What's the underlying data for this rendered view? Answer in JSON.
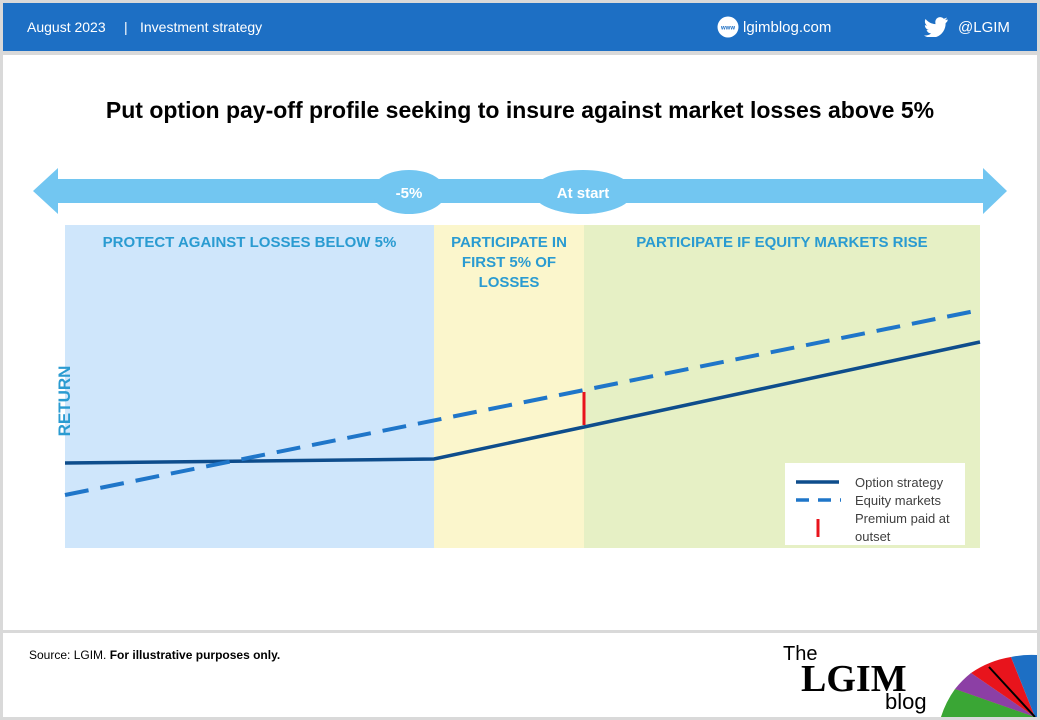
{
  "header": {
    "date": "August 2023",
    "separator": "|",
    "category": "Investment strategy",
    "site": "lgimblog.com",
    "site_icon_text": "www",
    "twitter_handle": "@LGIM",
    "icons": {
      "site": "globe-www-icon",
      "twitter": "twitter-bird-icon"
    }
  },
  "title": "Put option pay-off profile seeking to insure against market losses above 5%",
  "axis": {
    "markers": [
      "-5%",
      "At start"
    ],
    "y_label": "RETURN"
  },
  "zones": [
    {
      "label": "PROTECT AGAINST LOSSES BELOW 5%",
      "color": "#cfe6fb"
    },
    {
      "label": "PARTICIPATE IN FIRST 5% OF LOSSES",
      "label_lines": [
        "PARTICIPATE IN",
        "FIRST 5% OF",
        "LOSSES"
      ],
      "color": "#fbf6cc"
    },
    {
      "label": "PARTICIPATE IF EQUITY MARKETS RISE",
      "color": "#e6f0c5"
    }
  ],
  "legend": {
    "option": "Option strategy",
    "equity": "Equity markets",
    "premium_lines": [
      "Premium paid at",
      "outset"
    ]
  },
  "colors": {
    "header_bg": "#1d6fc4",
    "arrow": "#72c6f1",
    "option_line": "#0e4d8c",
    "equity_line": "#1f76c9",
    "premium": "#e8141c",
    "zone_label": "#2a9bd1"
  },
  "footer": {
    "source_prefix": "Source: LGIM.",
    "source_note": "For illustrative purposes only.",
    "logo_the": "The",
    "logo_lgim": "LGIM",
    "logo_blog": "blog"
  }
}
